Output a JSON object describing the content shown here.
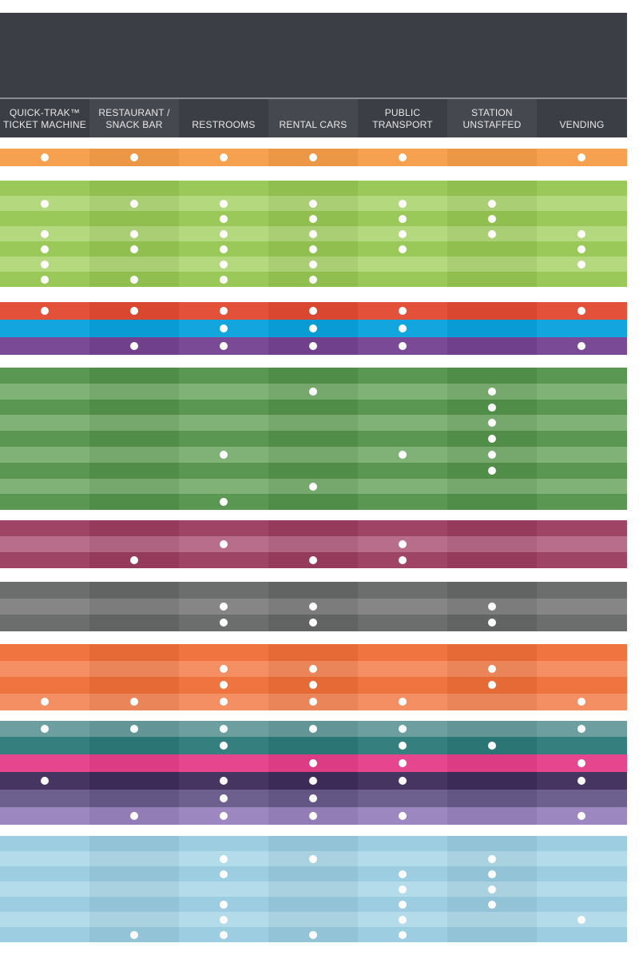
{
  "header": {
    "columns": [
      {
        "label": "QUICK-TRAK™\nTICKET MACHINE"
      },
      {
        "label": "RESTAURANT /\nSNACK BAR"
      },
      {
        "label": "RESTROOMS"
      },
      {
        "label": "RENTAL CARS"
      },
      {
        "label": "PUBLIC TRANSPORT"
      },
      {
        "label": "STATION\nUNSTAFFED"
      },
      {
        "label": "VENDING"
      }
    ]
  },
  "groups": [
    {
      "name": "orange-1",
      "colors": [
        "#f6a150",
        "#f8b468"
      ],
      "rows": [
        [
          1,
          1,
          1,
          1,
          1,
          0,
          1
        ]
      ]
    },
    {
      "name": "lime",
      "colors": [
        "#9ac95a",
        "#b4d87e"
      ],
      "rows": [
        [
          0,
          0,
          0,
          0,
          0,
          0,
          0
        ],
        [
          1,
          1,
          1,
          1,
          1,
          1,
          0
        ],
        [
          0,
          0,
          1,
          1,
          1,
          1,
          0
        ],
        [
          1,
          1,
          1,
          1,
          1,
          1,
          1
        ],
        [
          1,
          1,
          1,
          1,
          1,
          0,
          1
        ],
        [
          1,
          0,
          1,
          1,
          0,
          0,
          1
        ],
        [
          1,
          1,
          1,
          1,
          0,
          0,
          0
        ]
      ]
    },
    {
      "name": "red",
      "colors": [
        "#e4513a",
        "#ea6a52"
      ],
      "rows": [
        [
          1,
          1,
          1,
          1,
          1,
          0,
          1
        ]
      ]
    },
    {
      "name": "blue",
      "colors": [
        "#13a6de",
        "#34b4e4"
      ],
      "rows": [
        [
          0,
          0,
          1,
          1,
          1,
          0,
          0
        ]
      ]
    },
    {
      "name": "purple",
      "colors": [
        "#7b4a97",
        "#8a5ba5"
      ],
      "rows": [
        [
          0,
          1,
          1,
          1,
          1,
          0,
          1
        ]
      ]
    },
    {
      "name": "green",
      "colors": [
        "#5a9752",
        "#80b277"
      ],
      "rows": [
        [
          0,
          0,
          0,
          0,
          0,
          0,
          0
        ],
        [
          0,
          0,
          0,
          1,
          0,
          1,
          0
        ],
        [
          0,
          0,
          0,
          0,
          0,
          1,
          0
        ],
        [
          0,
          0,
          0,
          0,
          0,
          1,
          0
        ],
        [
          0,
          0,
          0,
          0,
          0,
          1,
          0
        ],
        [
          0,
          0,
          1,
          0,
          1,
          1,
          0
        ],
        [
          0,
          0,
          0,
          0,
          0,
          1,
          0
        ],
        [
          0,
          0,
          0,
          1,
          0,
          0,
          0
        ],
        [
          0,
          0,
          1,
          0,
          0,
          0,
          0
        ]
      ]
    },
    {
      "name": "maroon",
      "colors": [
        "#a04466",
        "#b86e8b"
      ],
      "rows": [
        [
          0,
          0,
          0,
          0,
          0,
          0,
          0
        ],
        [
          0,
          0,
          1,
          0,
          1,
          0,
          0
        ],
        [
          0,
          1,
          0,
          1,
          1,
          0,
          0
        ]
      ]
    },
    {
      "name": "gray",
      "colors": [
        "#6c6e6d",
        "#858685"
      ],
      "rows": [
        [
          0,
          0,
          0,
          0,
          0,
          0,
          0
        ],
        [
          0,
          0,
          1,
          1,
          0,
          1,
          0
        ],
        [
          0,
          0,
          1,
          1,
          0,
          1,
          0
        ]
      ]
    },
    {
      "name": "orange-2",
      "colors": [
        "#ef7440",
        "#f38f62"
      ],
      "rows": [
        [
          0,
          0,
          0,
          0,
          0,
          0,
          0
        ],
        [
          0,
          0,
          1,
          1,
          0,
          1,
          0
        ],
        [
          0,
          0,
          1,
          1,
          0,
          1,
          0
        ],
        [
          1,
          1,
          1,
          1,
          1,
          0,
          1
        ]
      ]
    },
    {
      "name": "teal",
      "colors": [
        "#6e9fa0",
        "#5f9697"
      ],
      "rows": [
        [
          1,
          1,
          1,
          1,
          1,
          0,
          1
        ]
      ]
    },
    {
      "name": "teal-dark",
      "colors": [
        "#357f7f",
        "#438b8b"
      ],
      "rows": [
        [
          0,
          0,
          1,
          0,
          1,
          1,
          0
        ]
      ]
    },
    {
      "name": "pink",
      "colors": [
        "#e5468d",
        "#ec68a3"
      ],
      "rows": [
        [
          0,
          0,
          0,
          1,
          1,
          0,
          1
        ]
      ]
    },
    {
      "name": "indigo",
      "colors": [
        "#453560",
        "#554570"
      ],
      "rows": [
        [
          1,
          0,
          1,
          1,
          1,
          0,
          1
        ]
      ]
    },
    {
      "name": "violet",
      "colors": [
        "#6d5f8e",
        "#7a6c9b"
      ],
      "rows": [
        [
          0,
          0,
          1,
          1,
          0,
          0,
          0
        ]
      ]
    },
    {
      "name": "lavender",
      "colors": [
        "#9c87c0",
        "#a994ca"
      ],
      "rows": [
        [
          0,
          1,
          1,
          1,
          1,
          0,
          1
        ]
      ]
    },
    {
      "name": "sky",
      "colors": [
        "#9ccde0",
        "#b4dbe9"
      ],
      "rows": [
        [
          0,
          0,
          0,
          0,
          0,
          0,
          0
        ],
        [
          0,
          0,
          1,
          1,
          0,
          1,
          0
        ],
        [
          0,
          0,
          1,
          0,
          1,
          1,
          0
        ],
        [
          0,
          0,
          0,
          0,
          1,
          1,
          0
        ],
        [
          0,
          0,
          1,
          0,
          1,
          1,
          0
        ],
        [
          0,
          0,
          1,
          0,
          1,
          0,
          1
        ],
        [
          0,
          1,
          1,
          1,
          1,
          0,
          0
        ]
      ]
    }
  ]
}
